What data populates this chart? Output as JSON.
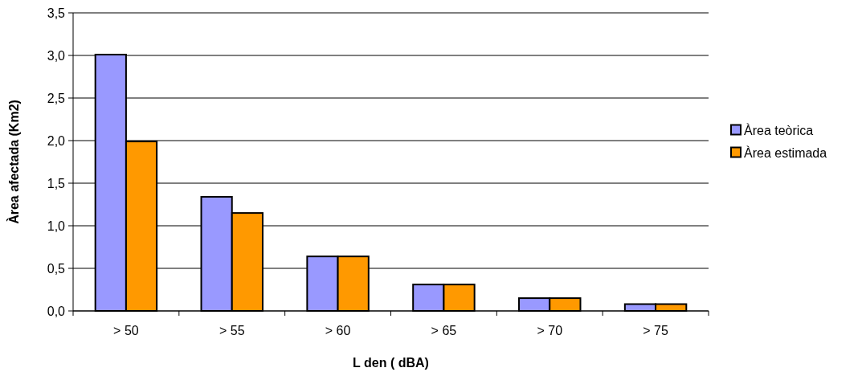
{
  "chart_data": {
    "type": "bar",
    "xlabel": "L den ( dBA)",
    "ylabel": "Àrea afectada (Km2)",
    "categories": [
      "> 50",
      "> 55",
      "> 60",
      "> 65",
      "> 70",
      "> 75"
    ],
    "series": [
      {
        "name": "Àrea teòrica",
        "color": "#9999ff",
        "values": [
          3.01,
          1.34,
          0.64,
          0.31,
          0.15,
          0.08
        ]
      },
      {
        "name": "Àrea estimada",
        "color": "#ff9900",
        "values": [
          1.99,
          1.15,
          0.64,
          0.31,
          0.15,
          0.08
        ]
      }
    ],
    "ylim": [
      0,
      3.5
    ],
    "yticks": [
      {
        "value": 0,
        "label": "0,0"
      },
      {
        "value": 0.5,
        "label": "0,5"
      },
      {
        "value": 1,
        "label": "1,0"
      },
      {
        "value": 1.5,
        "label": "1,5"
      },
      {
        "value": 2,
        "label": "2,0"
      },
      {
        "value": 2.5,
        "label": "2,5"
      },
      {
        "value": 3,
        "label": "3,0"
      },
      {
        "value": 3.5,
        "label": "3,5"
      }
    ],
    "grid": "y",
    "legend": "right"
  }
}
